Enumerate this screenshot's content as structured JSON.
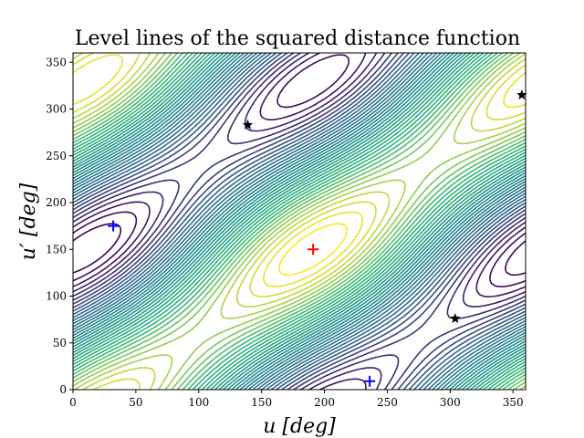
{
  "chart_data": {
    "type": "contour",
    "title": "Level lines of the squared distance function",
    "xlabel": "u [deg]",
    "ylabel": "u′ [deg]",
    "xlim": [
      0,
      360
    ],
    "ylim": [
      0,
      360
    ],
    "xticks": [
      0,
      50,
      100,
      150,
      200,
      250,
      300,
      350
    ],
    "yticks": [
      0,
      50,
      100,
      150,
      200,
      250,
      300,
      350
    ],
    "colormap": [
      "#440154",
      "#31688e",
      "#21918c",
      "#35b779",
      "#fde725"
    ],
    "markers": [
      {
        "name": "minimum",
        "shape": "plus",
        "color": "#ff0000",
        "x": 191,
        "y": 150
      },
      {
        "name": "saddle",
        "shape": "plus",
        "color": "#0000ff",
        "x": 32,
        "y": 175
      },
      {
        "name": "saddle",
        "shape": "plus",
        "color": "#0000ff",
        "x": 236,
        "y": 9
      },
      {
        "name": "maximum",
        "shape": "star",
        "color": "#000000",
        "x": 139,
        "y": 283
      },
      {
        "name": "maximum",
        "shape": "star",
        "color": "#000000",
        "x": 304,
        "y": 76
      },
      {
        "name": "maximum",
        "shape": "star",
        "color": "#000000",
        "x": 357,
        "y": 315
      }
    ]
  }
}
